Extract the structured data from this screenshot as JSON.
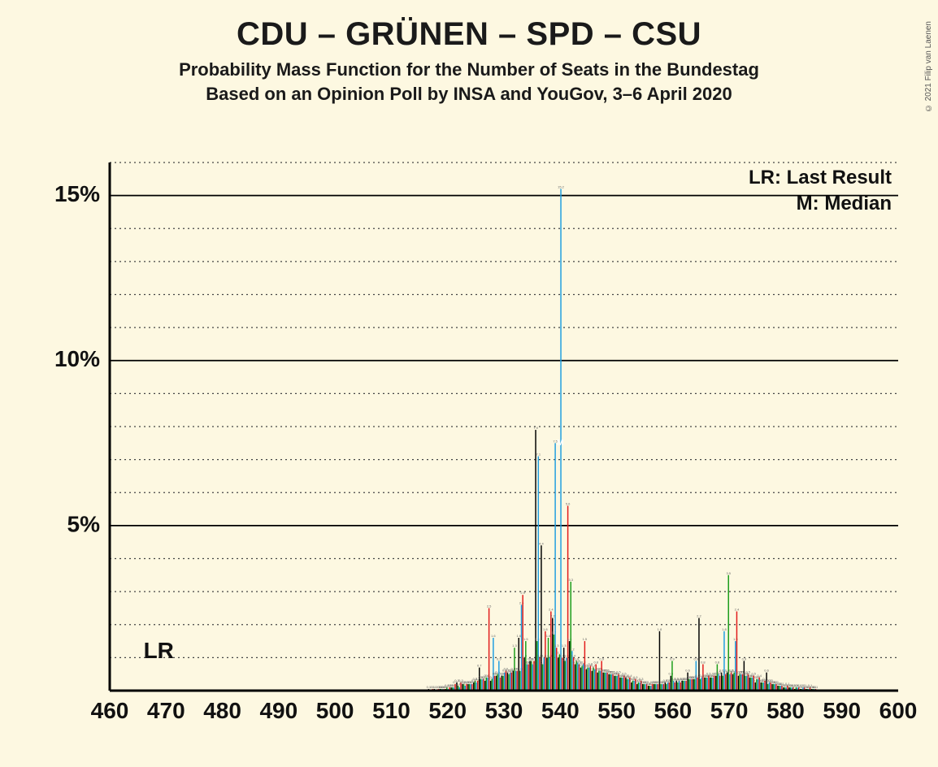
{
  "copyright": "© 2021 Filip van Laenen",
  "title": "CDU – GRÜNEN – SPD – CSU",
  "subtitle1": "Probability Mass Function for the Number of Seats in the Bundestag",
  "subtitle2": "Based on an Opinion Poll by INSA and YouGov, 3–6 April 2020",
  "legend_lr": "LR: Last Result",
  "legend_m": "M: Median",
  "lr_label": "LR",
  "chart": {
    "type": "bar-grouped",
    "background_color": "#fdf8e1",
    "axis_color": "#000000",
    "grid_major_color": "#000000",
    "grid_minor_color": "#444444",
    "title_fontsize": 40,
    "subtitle_fontsize": 22,
    "tick_fontsize": 28,
    "xlim": [
      460,
      600
    ],
    "ylim": [
      0,
      16
    ],
    "ytick_major": [
      5,
      10,
      15
    ],
    "ytick_minor_step": 1,
    "xtick_step": 10,
    "xticks": [
      460,
      470,
      480,
      490,
      500,
      510,
      520,
      530,
      540,
      550,
      560,
      570,
      580,
      590,
      600
    ],
    "lr_marker_x": 466,
    "series": [
      {
        "name": "black",
        "color": "#000000"
      },
      {
        "name": "green",
        "color": "#1a9d1a"
      },
      {
        "name": "blue",
        "color": "#1f9ee0"
      },
      {
        "name": "red",
        "color": "#e11b1b"
      }
    ],
    "bar_group_width": 0.95,
    "bars": {
      "517": {
        "black": 0.05,
        "green": 0.0,
        "blue": 0.0,
        "red": 0.05
      },
      "518": {
        "black": 0.05,
        "green": 0.0,
        "blue": 0.0,
        "red": 0.05
      },
      "519": {
        "black": 0.05,
        "green": 0.05,
        "blue": 0.05,
        "red": 0.05
      },
      "520": {
        "black": 0.05,
        "green": 0.1,
        "blue": 0.05,
        "red": 0.1
      },
      "521": {
        "black": 0.1,
        "green": 0.1,
        "blue": 0.1,
        "red": 0.2
      },
      "522": {
        "black": 0.25,
        "green": 0.15,
        "blue": 0.1,
        "red": 0.25
      },
      "523": {
        "black": 0.2,
        "green": 0.2,
        "blue": 0.15,
        "red": 0.2
      },
      "524": {
        "black": 0.2,
        "green": 0.2,
        "blue": 0.2,
        "red": 0.2
      },
      "525": {
        "black": 0.25,
        "green": 0.3,
        "blue": 0.25,
        "red": 0.3
      },
      "526": {
        "black": 0.7,
        "green": 0.35,
        "blue": 0.35,
        "red": 0.35
      },
      "527": {
        "black": 0.3,
        "green": 0.4,
        "blue": 0.4,
        "red": 2.5
      },
      "528": {
        "black": 0.3,
        "green": 0.35,
        "blue": 1.6,
        "red": 0.45
      },
      "529": {
        "black": 0.45,
        "green": 0.5,
        "blue": 0.9,
        "red": 0.4
      },
      "530": {
        "black": 0.45,
        "green": 0.45,
        "blue": 0.55,
        "red": 0.6
      },
      "531": {
        "black": 0.55,
        "green": 0.5,
        "blue": 0.55,
        "red": 0.55
      },
      "532": {
        "black": 0.6,
        "green": 1.3,
        "blue": 0.6,
        "red": 0.6
      },
      "533": {
        "black": 1.6,
        "green": 0.6,
        "blue": 2.6,
        "red": 2.9
      },
      "534": {
        "black": 1.0,
        "green": 1.5,
        "blue": 0.8,
        "red": 0.8
      },
      "535": {
        "black": 0.9,
        "green": 0.9,
        "blue": 0.8,
        "red": 0.9
      },
      "536": {
        "black": 7.9,
        "green": 1.5,
        "blue": 7.1,
        "red": 1.0
      },
      "537": {
        "black": 4.4,
        "green": 0.8,
        "blue": 1.0,
        "red": 1.8
      },
      "538": {
        "black": 1.0,
        "green": 1.6,
        "blue": 1.0,
        "red": 2.4
      },
      "539": {
        "black": 2.2,
        "green": 1.7,
        "blue": 7.5,
        "red": 1.3
      },
      "540": {
        "black": 1.0,
        "green": 1.1,
        "blue": 15.2,
        "red": 1.0
      },
      "541": {
        "black": 1.3,
        "green": 0.9,
        "blue": 1.0,
        "red": 5.6
      },
      "542": {
        "black": 1.5,
        "green": 3.3,
        "blue": 1.2,
        "red": 1.0
      },
      "543": {
        "black": 0.8,
        "green": 0.9,
        "blue": 0.85,
        "red": 0.8
      },
      "544": {
        "black": 0.7,
        "green": 0.75,
        "blue": 0.8,
        "red": 1.5
      },
      "545": {
        "black": 0.65,
        "green": 0.7,
        "blue": 0.7,
        "red": 0.75
      },
      "546": {
        "black": 0.6,
        "green": 0.7,
        "blue": 0.65,
        "red": 0.8
      },
      "547": {
        "black": 0.55,
        "green": 0.6,
        "blue": 0.6,
        "red": 0.9
      },
      "548": {
        "black": 0.55,
        "green": 0.55,
        "blue": 0.55,
        "red": 0.55
      },
      "549": {
        "black": 0.5,
        "green": 0.5,
        "blue": 0.5,
        "red": 0.5
      },
      "550": {
        "black": 0.45,
        "green": 0.45,
        "blue": 0.45,
        "red": 0.5
      },
      "551": {
        "black": 0.4,
        "green": 0.4,
        "blue": 0.4,
        "red": 0.45
      },
      "552": {
        "black": 0.4,
        "green": 0.35,
        "blue": 0.35,
        "red": 0.4
      },
      "553": {
        "black": 0.25,
        "green": 0.3,
        "blue": 0.3,
        "red": 0.35
      },
      "554": {
        "black": 0.2,
        "green": 0.25,
        "blue": 0.25,
        "red": 0.3
      },
      "555": {
        "black": 0.2,
        "green": 0.2,
        "blue": 0.2,
        "red": 0.2
      },
      "556": {
        "black": 0.15,
        "green": 0.15,
        "blue": 0.15,
        "red": 0.2
      },
      "557": {
        "black": 0.2,
        "green": 0.2,
        "blue": 0.2,
        "red": 0.2
      },
      "558": {
        "black": 1.8,
        "green": 0.2,
        "blue": 0.2,
        "red": 0.2
      },
      "559": {
        "black": 0.25,
        "green": 0.2,
        "blue": 0.25,
        "red": 0.25
      },
      "560": {
        "black": 0.45,
        "green": 0.9,
        "blue": 0.3,
        "red": 0.25
      },
      "561": {
        "black": 0.3,
        "green": 0.25,
        "blue": 0.3,
        "red": 0.25
      },
      "562": {
        "black": 0.3,
        "green": 0.3,
        "blue": 0.3,
        "red": 0.3
      },
      "563": {
        "black": 0.55,
        "green": 0.35,
        "blue": 0.35,
        "red": 0.35
      },
      "564": {
        "black": 0.35,
        "green": 0.35,
        "blue": 0.9,
        "red": 0.4
      },
      "565": {
        "black": 2.2,
        "green": 0.35,
        "blue": 0.4,
        "red": 0.8
      },
      "566": {
        "black": 0.4,
        "green": 0.4,
        "blue": 0.4,
        "red": 0.45
      },
      "567": {
        "black": 0.4,
        "green": 0.4,
        "blue": 0.4,
        "red": 0.45
      },
      "568": {
        "black": 0.45,
        "green": 0.8,
        "blue": 0.5,
        "red": 0.45
      },
      "569": {
        "black": 0.55,
        "green": 0.45,
        "blue": 1.8,
        "red": 0.5
      },
      "570": {
        "black": 0.55,
        "green": 3.5,
        "blue": 0.5,
        "red": 0.55
      },
      "571": {
        "black": 0.5,
        "green": 0.55,
        "blue": 1.5,
        "red": 2.4
      },
      "572": {
        "black": 0.45,
        "green": 0.5,
        "blue": 0.5,
        "red": 0.5
      },
      "573": {
        "black": 0.9,
        "green": 0.45,
        "blue": 0.45,
        "red": 0.5
      },
      "574": {
        "black": 0.4,
        "green": 0.4,
        "blue": 0.4,
        "red": 0.45
      },
      "575": {
        "black": 0.25,
        "green": 0.35,
        "blue": 0.35,
        "red": 0.4
      },
      "576": {
        "black": 0.25,
        "green": 0.25,
        "blue": 0.25,
        "red": 0.3
      },
      "577": {
        "black": 0.55,
        "green": 0.2,
        "blue": 0.25,
        "red": 0.25
      },
      "578": {
        "black": 0.2,
        "green": 0.2,
        "blue": 0.2,
        "red": 0.2
      },
      "579": {
        "black": 0.15,
        "green": 0.15,
        "blue": 0.15,
        "red": 0.15
      },
      "580": {
        "black": 0.1,
        "green": 0.1,
        "blue": 0.1,
        "red": 0.15
      },
      "581": {
        "black": 0.1,
        "green": 0.1,
        "blue": 0.1,
        "red": 0.1
      },
      "582": {
        "black": 0.05,
        "green": 0.1,
        "blue": 0.1,
        "red": 0.1
      },
      "583": {
        "black": 0.05,
        "green": 0.05,
        "blue": 0.1,
        "red": 0.1
      },
      "584": {
        "black": 0.05,
        "green": 0.05,
        "blue": 0.05,
        "red": 0.1
      },
      "585": {
        "black": 0.05,
        "green": 0.05,
        "blue": 0.05,
        "red": 0.05
      }
    },
    "m_marker_x": 540,
    "m_marker_y": 7.5
  }
}
